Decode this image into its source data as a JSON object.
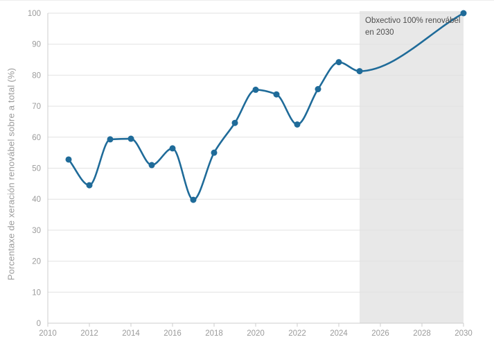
{
  "chart_data": {
    "type": "line",
    "title": "",
    "xlabel": "",
    "ylabel": "Porcentaxe de xeración renovábel sobre a total (%)",
    "series": [
      {
        "name": "Porcentaxe de xeración renovábel",
        "points": [
          {
            "x": 2011,
            "y": 52.8
          },
          {
            "x": 2012,
            "y": 44.5
          },
          {
            "x": 2013,
            "y": 59.3
          },
          {
            "x": 2014,
            "y": 59.5
          },
          {
            "x": 2015,
            "y": 51.0
          },
          {
            "x": 2016,
            "y": 56.4
          },
          {
            "x": 2017,
            "y": 39.8
          },
          {
            "x": 2018,
            "y": 55.0
          },
          {
            "x": 2019,
            "y": 64.6
          },
          {
            "x": 2020,
            "y": 75.3
          },
          {
            "x": 2021,
            "y": 73.8
          },
          {
            "x": 2022,
            "y": 64.1
          },
          {
            "x": 2023,
            "y": 75.5
          },
          {
            "x": 2024,
            "y": 84.2
          },
          {
            "x": 2025,
            "y": 81.3
          },
          {
            "x": 2030,
            "y": 100
          }
        ]
      }
    ],
    "xlim": [
      2010,
      2030
    ],
    "ylim": [
      0,
      100
    ],
    "xticks": [
      2010,
      2012,
      2014,
      2016,
      2018,
      2020,
      2022,
      2024,
      2026,
      2028,
      2030
    ],
    "yticks": [
      0,
      10,
      20,
      30,
      40,
      50,
      60,
      70,
      80,
      90,
      100
    ],
    "grid": "horizontal",
    "legend": "none",
    "annotation": {
      "line1": "Obxectivo 100% renovábel",
      "line2": "en 2030",
      "region_x_start": 2025,
      "region_x_end": 2030
    },
    "colors": {
      "line": "#1f6b99",
      "marker": "#1f6b99",
      "region": "#e8e8e8",
      "grid": "#e2e2e2",
      "axis": "#cccccc",
      "tick_label": "#9b9b9b",
      "axis_title": "#9b9b9b",
      "annotation_text": "#4d4d4d",
      "background": "#ffffff"
    }
  }
}
